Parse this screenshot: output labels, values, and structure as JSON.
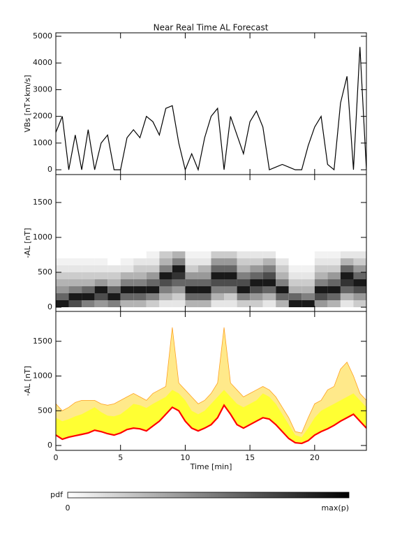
{
  "chart_data": [
    {
      "type": "line",
      "title": "Near Real Time AL Forecast",
      "ylabel": "VBs [nT×km/s]",
      "xlim": [
        0,
        24
      ],
      "xticks": [
        0,
        5,
        10,
        15,
        20
      ],
      "show_xtick_labels": false,
      "ylim": [
        -180,
        5130
      ],
      "yticks": [
        0,
        1000,
        2000,
        3000,
        4000,
        5000
      ],
      "x": [
        0,
        0.5,
        1,
        1.5,
        2,
        2.5,
        3,
        3.5,
        4,
        4.5,
        5,
        5.5,
        6,
        6.5,
        7,
        7.5,
        8,
        8.5,
        9,
        9.5,
        10,
        10.5,
        11,
        11.5,
        12,
        12.5,
        13,
        13.5,
        14,
        14.5,
        15,
        15.5,
        16,
        16.5,
        17,
        17.5,
        18,
        18.5,
        19,
        19.5,
        20,
        20.5,
        21,
        21.5,
        22,
        22.5,
        23,
        23.5,
        24
      ],
      "series": [
        {
          "color": "#000000",
          "values": [
            1400,
            2000,
            0,
            1300,
            0,
            1500,
            0,
            1000,
            1300,
            0,
            0,
            1200,
            1500,
            1200,
            2000,
            1800,
            1300,
            2300,
            2400,
            1000,
            0,
            600,
            0,
            1200,
            2000,
            2300,
            0,
            2000,
            1300,
            600,
            1800,
            2200,
            1600,
            0,
            100,
            200,
            100,
            0,
            0,
            900,
            1600,
            2000,
            200,
            0,
            2500,
            3500,
            0,
            4600,
            0
          ]
        }
      ]
    },
    {
      "type": "heatmap",
      "ylabel": "-AL [nT]",
      "xlim": [
        0,
        24
      ],
      "xticks": [
        0,
        5,
        10,
        15,
        20
      ],
      "show_xtick_labels": false,
      "ylim": [
        -60,
        1900
      ],
      "yticks": [
        0,
        500,
        1000,
        1500
      ],
      "x_edges": [
        0,
        1,
        2,
        3,
        4,
        5,
        6,
        7,
        8,
        9,
        10,
        11,
        12,
        13,
        14,
        15,
        16,
        17,
        18,
        19,
        20,
        21,
        22,
        23,
        24
      ],
      "y_edges": [
        0,
        100,
        200,
        300,
        400,
        500,
        600,
        700,
        800
      ],
      "pdf": [
        [
          0.9,
          0.6,
          0.4,
          0.3,
          0.2,
          0.1,
          0.05,
          0
        ],
        [
          0.7,
          0.9,
          0.5,
          0.3,
          0.2,
          0.1,
          0.05,
          0
        ],
        [
          0.5,
          0.9,
          0.6,
          0.3,
          0.2,
          0.1,
          0.05,
          0
        ],
        [
          0.4,
          0.7,
          0.9,
          0.4,
          0.2,
          0.1,
          0.05,
          0
        ],
        [
          0.5,
          0.9,
          0.6,
          0.3,
          0.2,
          0.1,
          0,
          0
        ],
        [
          0.3,
          0.6,
          0.9,
          0.5,
          0.3,
          0.1,
          0.05,
          0
        ],
        [
          0.3,
          0.6,
          0.9,
          0.5,
          0.3,
          0.2,
          0.1,
          0
        ],
        [
          0.2,
          0.5,
          0.9,
          0.6,
          0.4,
          0.2,
          0.1,
          0.05
        ],
        [
          0.1,
          0.3,
          0.5,
          0.7,
          0.9,
          0.5,
          0.3,
          0.2
        ],
        [
          0.1,
          0.2,
          0.4,
          0.6,
          0.8,
          0.9,
          0.5,
          0.3
        ],
        [
          0.3,
          0.6,
          0.9,
          0.6,
          0.4,
          0.2,
          0.1,
          0.05
        ],
        [
          0.3,
          0.6,
          0.9,
          0.6,
          0.4,
          0.3,
          0.1,
          0.05
        ],
        [
          0.1,
          0.3,
          0.5,
          0.7,
          0.9,
          0.6,
          0.4,
          0.2
        ],
        [
          0.1,
          0.2,
          0.5,
          0.7,
          0.9,
          0.6,
          0.4,
          0.2
        ],
        [
          0.2,
          0.5,
          0.9,
          0.7,
          0.5,
          0.3,
          0.2,
          0.1
        ],
        [
          0.2,
          0.4,
          0.7,
          0.9,
          0.6,
          0.4,
          0.2,
          0.1
        ],
        [
          0.1,
          0.3,
          0.6,
          0.9,
          0.7,
          0.5,
          0.3,
          0.1
        ],
        [
          0.3,
          0.6,
          0.9,
          0.5,
          0.3,
          0.2,
          0.1,
          0
        ],
        [
          0.9,
          0.6,
          0.3,
          0.2,
          0.1,
          0.05,
          0,
          0
        ],
        [
          0.9,
          0.5,
          0.3,
          0.2,
          0.1,
          0.05,
          0,
          0
        ],
        [
          0.4,
          0.7,
          0.9,
          0.5,
          0.3,
          0.2,
          0.1,
          0.05
        ],
        [
          0.3,
          0.6,
          0.9,
          0.6,
          0.4,
          0.2,
          0.1,
          0.05
        ],
        [
          0.1,
          0.3,
          0.6,
          0.8,
          0.9,
          0.6,
          0.3,
          0.1
        ],
        [
          0.2,
          0.4,
          0.7,
          0.9,
          0.6,
          0.4,
          0.2,
          0.1
        ]
      ],
      "colorbar": {
        "label": "pdf",
        "min_label": "0",
        "max_label": "max(p)"
      }
    },
    {
      "type": "band",
      "ylabel": "-AL [nT]",
      "xlabel": "Time [min]",
      "xlim": [
        0,
        24
      ],
      "xticks": [
        0,
        5,
        10,
        15,
        20
      ],
      "show_xtick_labels": true,
      "ylim": [
        -70,
        1930
      ],
      "yticks": [
        0,
        500,
        1000,
        1500
      ],
      "x": [
        0,
        0.5,
        1,
        1.5,
        2,
        2.5,
        3,
        3.5,
        4,
        4.5,
        5,
        5.5,
        6,
        6.5,
        7,
        7.5,
        8,
        8.5,
        9,
        9.5,
        10,
        10.5,
        11,
        11.5,
        12,
        12.5,
        13,
        13.5,
        14,
        14.5,
        15,
        15.5,
        16,
        16.5,
        17,
        17.5,
        18,
        18.5,
        19,
        19.5,
        20,
        20.5,
        21,
        21.5,
        22,
        22.5,
        23,
        23.5,
        24
      ],
      "series": [
        {
          "color": "#ff0000",
          "values": [
            150,
            90,
            120,
            140,
            160,
            180,
            220,
            200,
            170,
            150,
            180,
            230,
            250,
            240,
            210,
            280,
            350,
            450,
            550,
            500,
            350,
            250,
            210,
            250,
            300,
            400,
            580,
            450,
            300,
            250,
            300,
            350,
            400,
            380,
            300,
            200,
            100,
            40,
            30,
            70,
            150,
            200,
            240,
            290,
            350,
            400,
            450,
            350,
            250
          ]
        },
        {
          "color": "#ffff33",
          "values": [
            400,
            350,
            380,
            420,
            450,
            500,
            550,
            480,
            430,
            420,
            450,
            520,
            600,
            580,
            540,
            600,
            650,
            700,
            800,
            750,
            650,
            500,
            450,
            500,
            600,
            700,
            800,
            700,
            600,
            550,
            600,
            650,
            750,
            700,
            600,
            450,
            300,
            150,
            120,
            250,
            400,
            500,
            550,
            600,
            650,
            700,
            750,
            650,
            550
          ]
        },
        {
          "color": "#ffa020",
          "values": [
            600,
            500,
            550,
            620,
            650,
            650,
            650,
            600,
            580,
            600,
            650,
            700,
            750,
            700,
            650,
            750,
            800,
            850,
            1700,
            900,
            800,
            700,
            600,
            650,
            750,
            900,
            1700,
            900,
            800,
            700,
            750,
            800,
            850,
            800,
            700,
            550,
            400,
            200,
            180,
            400,
            600,
            650,
            800,
            850,
            1100,
            1200,
            1000,
            750,
            650
          ]
        }
      ]
    }
  ]
}
